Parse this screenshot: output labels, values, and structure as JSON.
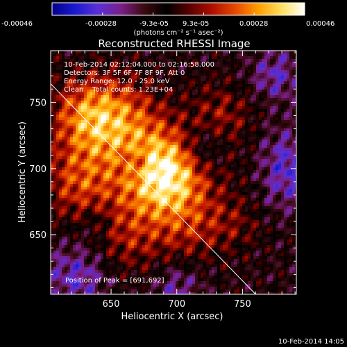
{
  "colorbar": {
    "tick_labels": [
      "-0.00046",
      "-0.00028",
      "-9.3e-05",
      "9.3e-05",
      "0.00028",
      "0.00046"
    ],
    "units": "(photons cm⁻² s⁻¹ asec⁻²)",
    "colormap": [
      "#00008b",
      "#1a1ad0",
      "#5a2fd6",
      "#7b1f8a",
      "#3a0a10",
      "#000000",
      "#5a0000",
      "#b01000",
      "#e84a00",
      "#ffa000",
      "#ffe060",
      "#ffffff"
    ]
  },
  "plot": {
    "title": "Reconstructed RHESSI Image",
    "xlabel": "Heliocentric X (arcsec)",
    "ylabel": "Heliocentric Y (arcsec)",
    "info_lines": [
      "10-Feb-2014 02:12:04.000 to 02:16:58.000",
      "Detectors: 3F 5F 6F 7F 8F 9F, Att 0",
      "Energy Range: 12.0 - 25.0 keV",
      "Clean    Total counts: 1.23E+04"
    ],
    "peak_label": "Position of Peak = [691,692]",
    "timestamp": "10-Feb-2014 14:05"
  },
  "chart_data": {
    "type": "heatmap",
    "title": "Reconstructed RHESSI Image",
    "xlabel": "Heliocentric X (arcsec)",
    "ylabel": "Heliocentric Y (arcsec)",
    "xlim": [
      604,
      791
    ],
    "ylim": [
      605,
      789
    ],
    "xticks": [
      650,
      700,
      750
    ],
    "yticks": [
      650,
      700,
      750
    ],
    "zlim": [
      -0.00046,
      0.00046
    ],
    "peak": [
      691,
      692
    ],
    "limb_line": [
      [
        604,
        764
      ],
      [
        760,
        605
      ]
    ],
    "bright_regions": [
      {
        "x": 691,
        "y": 696,
        "sigma": 22,
        "weight": 1.0
      },
      {
        "x": 655,
        "y": 735,
        "sigma": 24,
        "weight": 0.55
      },
      {
        "x": 630,
        "y": 740,
        "sigma": 20,
        "weight": 0.45
      },
      {
        "x": 625,
        "y": 690,
        "sigma": 20,
        "weight": 0.45
      },
      {
        "x": 660,
        "y": 650,
        "sigma": 22,
        "weight": 0.35
      },
      {
        "x": 710,
        "y": 655,
        "sigma": 20,
        "weight": 0.3
      },
      {
        "x": 735,
        "y": 740,
        "sigma": 18,
        "weight": 0.3
      },
      {
        "x": 760,
        "y": 700,
        "sigma": 16,
        "weight": 0.22
      },
      {
        "x": 745,
        "y": 660,
        "sigma": 16,
        "weight": 0.2
      }
    ],
    "dark_regions": [
      {
        "x": 780,
        "y": 700,
        "sigma": 20,
        "weight": 0.5
      },
      {
        "x": 720,
        "y": 715,
        "sigma": 12,
        "weight": 0.35
      },
      {
        "x": 625,
        "y": 620,
        "sigma": 18,
        "weight": 0.4
      },
      {
        "x": 775,
        "y": 770,
        "sigma": 14,
        "weight": 0.35
      },
      {
        "x": 700,
        "y": 610,
        "sigma": 14,
        "weight": 0.3
      },
      {
        "x": 670,
        "y": 705,
        "sigma": 8,
        "weight": 0.25
      },
      {
        "x": 640,
        "y": 660,
        "sigma": 10,
        "weight": 0.2
      }
    ]
  }
}
